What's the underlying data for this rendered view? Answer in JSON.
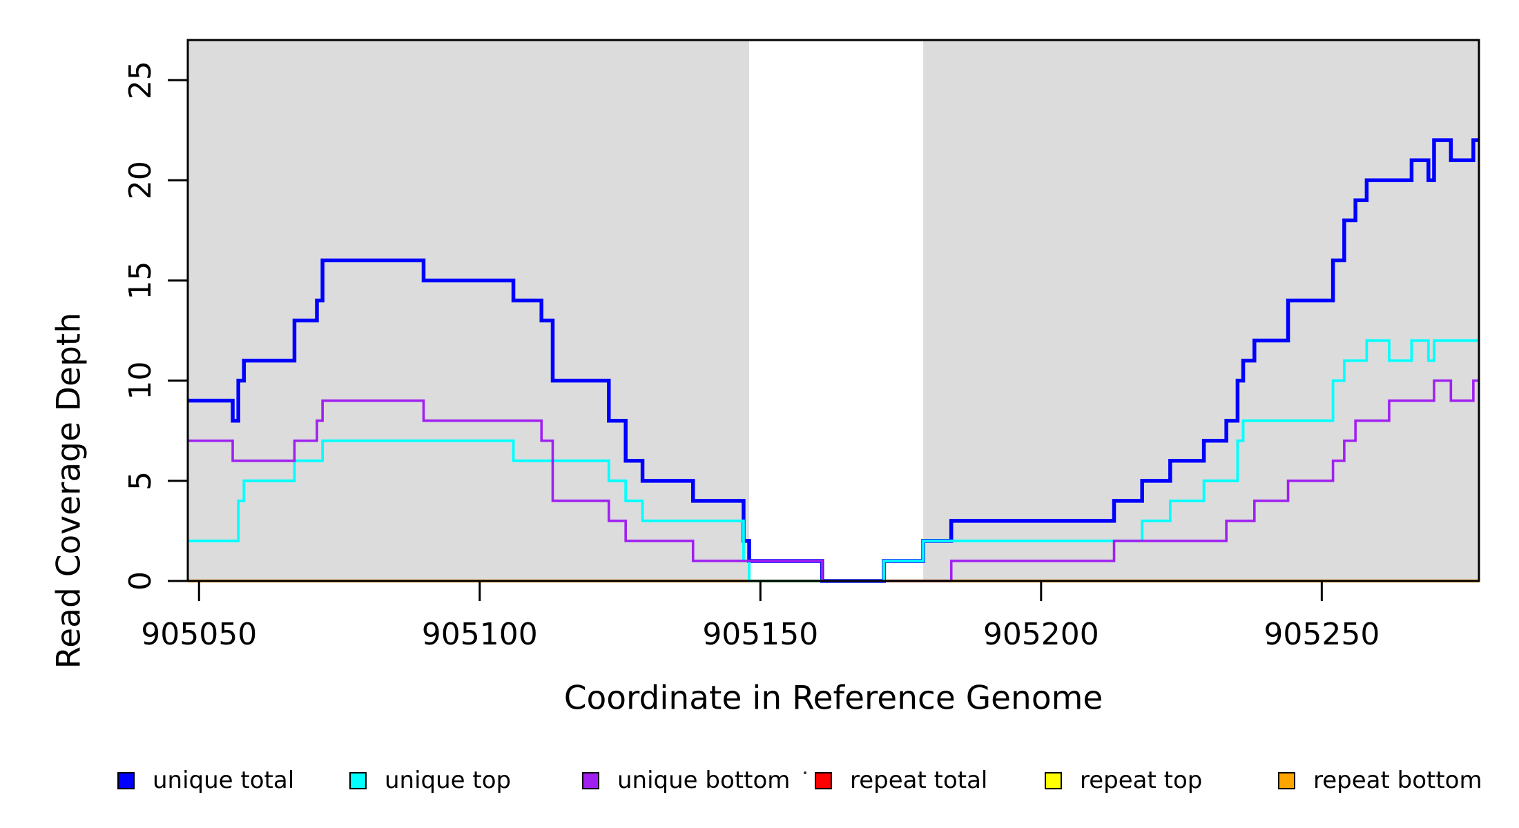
{
  "figure": {
    "x_axis_label": "Coordinate in Reference Genome",
    "y_axis_label": "Read Coverage Depth"
  },
  "chart_data": {
    "type": "line",
    "subtype": "step-after",
    "title": "",
    "xlabel": "Coordinate in Reference Genome",
    "ylabel": "Read Coverage Depth",
    "x_range": [
      905048,
      905278
    ],
    "y_range": [
      0,
      27
    ],
    "x_ticks": [
      "905050",
      "905100",
      "905150",
      "905200",
      "905250"
    ],
    "x_tick_values": [
      905050,
      905100,
      905150,
      905200,
      905250
    ],
    "y_ticks": [
      "0",
      "5",
      "10",
      "15",
      "20",
      "25"
    ],
    "y_tick_values": [
      0,
      5,
      10,
      15,
      20,
      25
    ],
    "grid": false,
    "panel_background": "#ffffff",
    "background_bands": [
      {
        "from": 905048,
        "to": 905148,
        "color": "#dcdcdc"
      },
      {
        "from": 905179,
        "to": 905278,
        "color": "#dcdcdc"
      }
    ],
    "series": [
      {
        "name": "repeat total",
        "color": "#ff0000",
        "width": 3,
        "steps": [
          [
            905048,
            0
          ]
        ]
      },
      {
        "name": "repeat top",
        "color": "#ffff00",
        "width": 3,
        "steps": [
          [
            905048,
            0
          ]
        ]
      },
      {
        "name": "repeat bottom",
        "color": "#ffa500",
        "width": 4.2,
        "steps": [
          [
            905048,
            0
          ]
        ]
      },
      {
        "name": "unique total",
        "color": "#0000ff",
        "width": 5.5,
        "steps": [
          [
            905048,
            9
          ],
          [
            905056,
            8
          ],
          [
            905057,
            10
          ],
          [
            905058,
            11
          ],
          [
            905067,
            13
          ],
          [
            905071,
            14
          ],
          [
            905072,
            16
          ],
          [
            905090,
            15
          ],
          [
            905106,
            14
          ],
          [
            905111,
            13
          ],
          [
            905113,
            10
          ],
          [
            905123,
            8
          ],
          [
            905126,
            6
          ],
          [
            905129,
            5
          ],
          [
            905138,
            4
          ],
          [
            905147,
            2
          ],
          [
            905148,
            1
          ],
          [
            905161,
            0
          ],
          [
            905172,
            1
          ],
          [
            905179,
            2
          ],
          [
            905184,
            3
          ],
          [
            905213,
            4
          ],
          [
            905218,
            5
          ],
          [
            905223,
            6
          ],
          [
            905229,
            7
          ],
          [
            905233,
            8
          ],
          [
            905235,
            10
          ],
          [
            905236,
            11
          ],
          [
            905238,
            12
          ],
          [
            905244,
            14
          ],
          [
            905252,
            16
          ],
          [
            905254,
            18
          ],
          [
            905256,
            19
          ],
          [
            905258,
            20
          ],
          [
            905266,
            21
          ],
          [
            905269,
            20
          ],
          [
            905270,
            22
          ],
          [
            905273,
            21
          ],
          [
            905277,
            22
          ]
        ]
      },
      {
        "name": "unique top",
        "color": "#00ffff",
        "width": 3.8,
        "steps": [
          [
            905048,
            2
          ],
          [
            905057,
            4
          ],
          [
            905058,
            5
          ],
          [
            905067,
            6
          ],
          [
            905072,
            7
          ],
          [
            905106,
            6
          ],
          [
            905123,
            5
          ],
          [
            905126,
            4
          ],
          [
            905129,
            3
          ],
          [
            905147,
            1
          ],
          [
            905148,
            0
          ],
          [
            905172,
            1
          ],
          [
            905179,
            2
          ],
          [
            905218,
            3
          ],
          [
            905223,
            4
          ],
          [
            905229,
            5
          ],
          [
            905235,
            7
          ],
          [
            905236,
            8
          ],
          [
            905252,
            10
          ],
          [
            905254,
            11
          ],
          [
            905258,
            12
          ],
          [
            905262,
            11
          ],
          [
            905266,
            12
          ],
          [
            905269,
            11
          ],
          [
            905270,
            12
          ]
        ]
      },
      {
        "name": "unique bottom",
        "color": "#a020f0",
        "width": 3.6,
        "steps": [
          [
            905048,
            7
          ],
          [
            905056,
            6
          ],
          [
            905067,
            7
          ],
          [
            905071,
            8
          ],
          [
            905072,
            9
          ],
          [
            905090,
            8
          ],
          [
            905111,
            7
          ],
          [
            905113,
            4
          ],
          [
            905123,
            3
          ],
          [
            905126,
            2
          ],
          [
            905138,
            1
          ],
          [
            905161,
            0
          ],
          [
            905184,
            1
          ],
          [
            905213,
            2
          ],
          [
            905233,
            3
          ],
          [
            905238,
            4
          ],
          [
            905244,
            5
          ],
          [
            905252,
            6
          ],
          [
            905254,
            7
          ],
          [
            905256,
            8
          ],
          [
            905262,
            9
          ],
          [
            905270,
            10
          ],
          [
            905273,
            9
          ],
          [
            905277,
            10
          ]
        ]
      }
    ],
    "legend_position": "bottom"
  },
  "legend": {
    "items": [
      {
        "label": "unique total",
        "color": "#0000ff"
      },
      {
        "label": "unique top",
        "color": "#00ffff"
      },
      {
        "label": "unique bottom",
        "color": "#a020f0"
      },
      {
        "label": "repeat total",
        "color": "#ff0000"
      },
      {
        "label": "repeat top",
        "color": "#ffff00"
      },
      {
        "label": "repeat bottom",
        "color": "#ffa500"
      }
    ]
  }
}
